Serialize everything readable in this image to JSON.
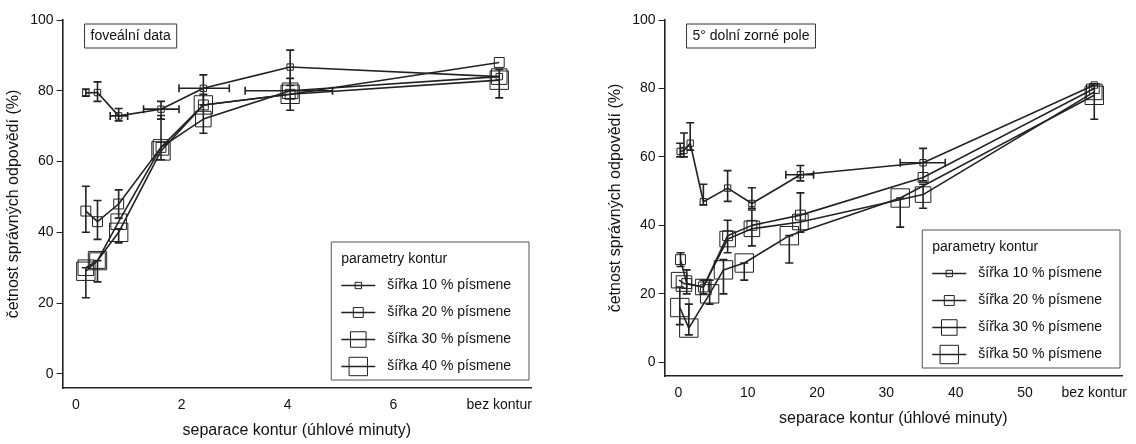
{
  "chart_data": [
    {
      "type": "line",
      "annotations": [
        "foveální data"
      ],
      "xlabel": "separace kontur (úhlové minuty)",
      "ylabel": "četnost správných odpovědí (%)",
      "xlim": [
        -0.25,
        8.6
      ],
      "xticks": [
        0,
        2,
        4,
        6,
        {
          "value": 8,
          "label": "bez kontur"
        }
      ],
      "ylim": [
        -4,
        100
      ],
      "yticks": [
        0,
        20,
        40,
        60,
        80,
        100
      ],
      "legend": "bottom right",
      "legend_title": "parametry kontur",
      "marker": "square",
      "series": [
        {
          "name": "šířka 10 % písmene",
          "color": "#222222",
          "x": [
            0.19,
            0.41,
            0.81,
            1.61,
            2.41,
            4.05,
            8
          ],
          "values": [
            79.4,
            79.5,
            72.9,
            74.8,
            80.7,
            86.7,
            84
          ],
          "errors": [
            [
              78.5,
              80.5
            ],
            [
              77,
              82.5
            ],
            [
              71.5,
              75
            ],
            [
              72,
              77
            ],
            [
              76,
              84.5
            ],
            [
              81.5,
              91.5
            ],
            [
              78,
              86
            ]
          ],
          "xerrors": [
            null,
            null,
            [
              0.65,
              0.98
            ],
            [
              1.28,
              1.95
            ],
            [
              1.95,
              2.9
            ],
            null,
            null
          ]
        },
        {
          "name": "šířka 20 % písmene",
          "color": "#222222",
          "x": [
            0.19,
            0.41,
            0.81,
            1.61,
            2.41,
            4.05,
            8
          ],
          "values": [
            46,
            43,
            48,
            64,
            76,
            79,
            88
          ],
          "errors": [
            [
              40,
              53
            ],
            [
              38,
              49
            ],
            [
              44,
              52
            ],
            null,
            null,
            null,
            null
          ]
        },
        {
          "name": "šířka 30 % písmene",
          "color": "#222222",
          "x": [
            0.19,
            0.41,
            0.81,
            1.61,
            2.41,
            4.05,
            8
          ],
          "values": [
            30,
            32,
            43,
            64,
            72,
            80,
            84
          ],
          "errors": [
            [
              21.5,
              30
            ],
            [
              26,
              32
            ],
            [
              37,
              41
            ],
            [
              60.5,
              73
            ],
            [
              68,
              79
            ],
            [
              74.5,
              83.5
            ],
            null
          ],
          "xerrors": [
            null,
            null,
            null,
            null,
            null,
            [
              3.2,
              4.85
            ],
            null
          ]
        },
        {
          "name": "šířka 40 % písmene",
          "color": "#222222",
          "x": [
            0.19,
            0.41,
            0.81,
            1.61,
            2.41,
            4.05,
            8
          ],
          "values": [
            29,
            32,
            40,
            63,
            76,
            79,
            83
          ]
        }
      ]
    },
    {
      "type": "line",
      "annotations": [
        "5° dolní zorné pole"
      ],
      "xlabel": "separace kontur (úhlové minuty)",
      "ylabel": "četnost správných odpovědí (%)",
      "xlim": [
        -2,
        64
      ],
      "xticks": [
        0,
        10,
        20,
        30,
        40,
        50,
        {
          "value": 60,
          "label": "bez kontur"
        }
      ],
      "ylim": [
        -4,
        100
      ],
      "yticks": [
        0,
        20,
        40,
        60,
        80,
        100
      ],
      "legend": "bottom right",
      "legend_title": "parametry kontur",
      "marker": "square",
      "series": [
        {
          "name": "šířka 10 % písmene",
          "color": "#222222",
          "x": [
            0.25,
            0.8,
            1.7,
            3.6,
            7.1,
            10.6,
            17.6,
            35.3,
            60
          ],
          "values": [
            61.6,
            61.9,
            64,
            46.9,
            50.9,
            46.4,
            54.8,
            58.3,
            81
          ],
          "errors": [
            [
              60,
              64
            ],
            [
              60,
              67
            ],
            [
              62,
              70
            ],
            [
              46,
              52
            ],
            [
              47,
              56
            ],
            [
              45,
              51
            ],
            [
              53,
              57.5
            ],
            [
              53,
              62.5
            ],
            [
              71,
              81
            ]
          ],
          "xerrors": [
            null,
            null,
            null,
            null,
            null,
            null,
            [
              15.5,
              19.5
            ],
            [
              32,
              38.5
            ],
            null
          ]
        },
        {
          "name": "šířka 20 % písmene",
          "color": "#222222",
          "x": [
            0.3,
            1.2,
            3.6,
            7.1,
            10.6,
            17.6,
            35.3,
            60
          ],
          "values": [
            30,
            23,
            22,
            37,
            40,
            43,
            54,
            80
          ],
          "errors": [
            [
              28,
              32
            ],
            [
              20,
              27
            ],
            [
              20,
              24
            ],
            [
              32,
              41.5
            ],
            [
              34,
              44.5
            ],
            [
              38,
              49.5
            ],
            null,
            null
          ]
        },
        {
          "name": "šířka 30 % písmene",
          "color": "#222222",
          "x": [
            0.1,
            0.8,
            3.6,
            7.1,
            10.6,
            17.6,
            35.3,
            60
          ],
          "values": [
            24,
            23,
            22,
            36,
            39,
            41,
            49,
            79
          ],
          "errors": [
            null,
            null,
            null,
            null,
            null,
            null,
            [
              45,
              52
            ],
            null
          ]
        },
        {
          "name": "šířka 50 % písmene",
          "color": "#222222",
          "x": [
            0.2,
            1.5,
            4.5,
            6.5,
            9.5,
            16,
            32,
            60
          ],
          "values": [
            16,
            10,
            20,
            27,
            29,
            37,
            48,
            78
          ],
          "errors": [
            [
              11,
              22
            ],
            [
              8,
              17
            ],
            [
              17,
              24
            ],
            [
              20,
              30
            ],
            [
              24,
              29
            ],
            [
              29,
              37
            ],
            [
              39.5,
              48
            ],
            null
          ]
        }
      ]
    }
  ]
}
